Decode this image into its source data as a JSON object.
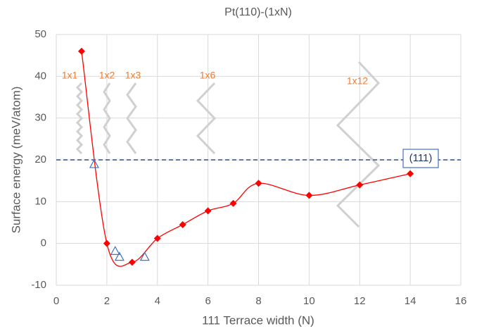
{
  "chart_data": {
    "type": "scatter",
    "title": "Pt(110)-(1xN)",
    "x_label": "111 Terrace width (N)",
    "y_label": "Surface energy (meV/atom)",
    "xlim": [
      0,
      16
    ],
    "xticks": [
      0,
      2,
      4,
      6,
      8,
      10,
      12,
      14,
      16
    ],
    "ylim": [
      -10,
      50
    ],
    "yticks": [
      -10,
      0,
      10,
      20,
      30,
      40,
      50
    ],
    "grid": true,
    "series": [
      {
        "color": "#ff0000",
        "marker": "diamond",
        "smooth": true,
        "x": [
          1,
          2,
          3,
          4,
          5,
          6,
          7,
          8,
          10,
          12,
          14
        ],
        "values": [
          46,
          0,
          -4.5,
          1.2,
          4.5,
          7.8,
          9.6,
          14.4,
          11.5,
          14,
          16.7
        ]
      },
      {
        "color": "#4472c4",
        "marker": "triangle",
        "smooth": false,
        "x": [
          1.5,
          2.33,
          2.5,
          3.5
        ],
        "values": [
          19,
          -1.8,
          -3.2,
          -3.2
        ]
      }
    ],
    "hline": {
      "value": 20,
      "label": "(111)",
      "color": "#2f4f7f"
    },
    "annotations": [
      "1x1",
      "1x2",
      "1x3",
      "1x6",
      "1x12"
    ],
    "annotation_color": "#ed7d31"
  }
}
